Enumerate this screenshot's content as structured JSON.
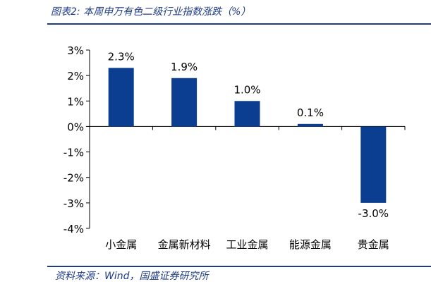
{
  "figure": {
    "title": "图表2:  本周申万有色二级行业指数涨跌（%）",
    "source": "资料来源：Wind，国盛证券研究所"
  },
  "colors": {
    "bar": "#0b3d91",
    "accent": "#1f3c88"
  },
  "chart_data": {
    "type": "bar",
    "categories": [
      "小金属",
      "金属新材料",
      "工业金属",
      "能源金属",
      "贵金属"
    ],
    "values": [
      2.3,
      1.9,
      1.0,
      0.1,
      -3.0
    ],
    "data_labels": [
      "2.3%",
      "1.9%",
      "1.0%",
      "0.1%",
      "-3.0%"
    ],
    "y_ticks": [
      "3%",
      "2%",
      "1%",
      "0%",
      "-1%",
      "-2%",
      "-3%",
      "-4%"
    ],
    "ylim": [
      -4,
      3
    ],
    "grid": false,
    "title": "",
    "xlabel": "",
    "ylabel": ""
  }
}
